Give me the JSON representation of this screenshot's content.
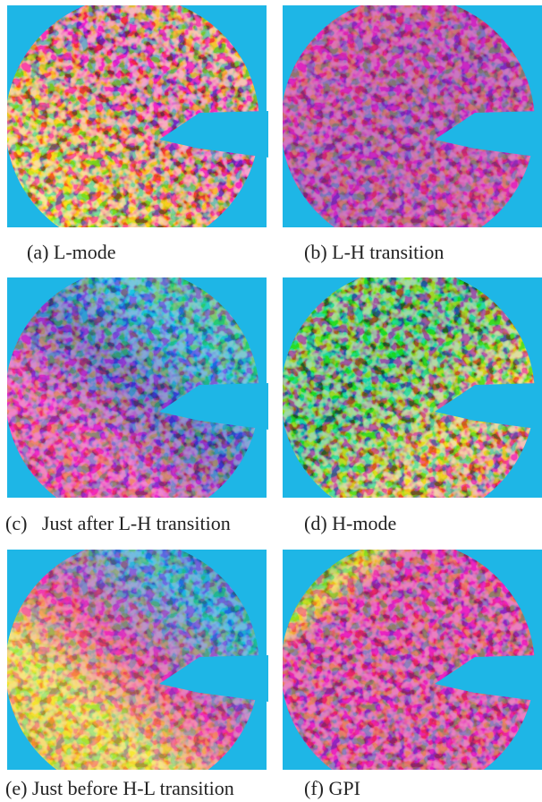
{
  "figure": {
    "panels": [
      {
        "caption": "(a) L-mode"
      },
      {
        "caption": "(b) L-H transition"
      },
      {
        "caption": "(c)   Just after L-H transition"
      },
      {
        "caption": "(d) H-mode"
      },
      {
        "caption": "(e) Just before H-L transition"
      },
      {
        "caption": "(f) GPI"
      }
    ]
  }
}
